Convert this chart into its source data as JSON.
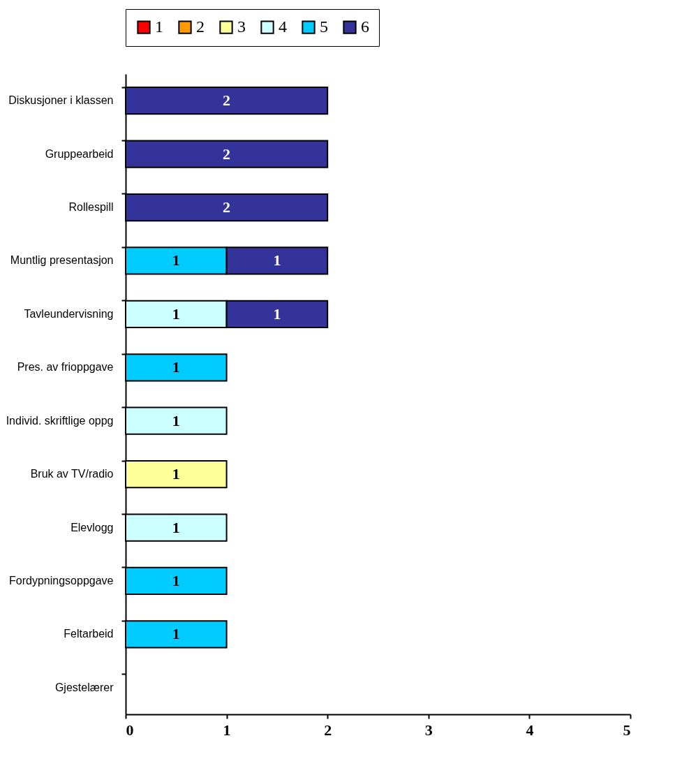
{
  "chart_data": {
    "type": "bar",
    "orientation": "horizontal",
    "stacked": true,
    "data_labels": true,
    "legend": "top",
    "grid": false,
    "categories": [
      "Diskusjoner i klassen",
      "Gruppearbeid",
      "Rollespill",
      "Muntlig presentasjon",
      "Tavleundervisning",
      "Pres. av frioppgave",
      "Individ. skriftlige oppg",
      "Bruk av TV/radio",
      "Elevlogg",
      "Fordypningsoppgave",
      "Feltarbeid",
      "Gjestelærer"
    ],
    "xlim": [
      0,
      5
    ],
    "xticks": [
      0,
      1,
      2,
      3,
      4,
      5
    ],
    "series": [
      {
        "name": "1",
        "color": "#ff0000",
        "values": [
          null,
          null,
          null,
          null,
          null,
          null,
          null,
          null,
          null,
          null,
          null,
          null
        ]
      },
      {
        "name": "2",
        "color": "#ff9900",
        "values": [
          null,
          null,
          null,
          null,
          null,
          null,
          null,
          null,
          null,
          null,
          null,
          null
        ]
      },
      {
        "name": "3",
        "color": "#ffff99",
        "values": [
          null,
          null,
          null,
          null,
          null,
          null,
          null,
          1,
          null,
          null,
          null,
          null
        ]
      },
      {
        "name": "4",
        "color": "#ccffff",
        "values": [
          null,
          null,
          null,
          null,
          1,
          null,
          1,
          null,
          1,
          null,
          null,
          null
        ]
      },
      {
        "name": "5",
        "color": "#00ccff",
        "values": [
          null,
          null,
          null,
          1,
          null,
          1,
          null,
          null,
          null,
          1,
          1,
          null
        ]
      },
      {
        "name": "6",
        "color": "#333399",
        "values": [
          2,
          2,
          2,
          1,
          1,
          null,
          null,
          null,
          null,
          null,
          null,
          null
        ]
      }
    ]
  }
}
